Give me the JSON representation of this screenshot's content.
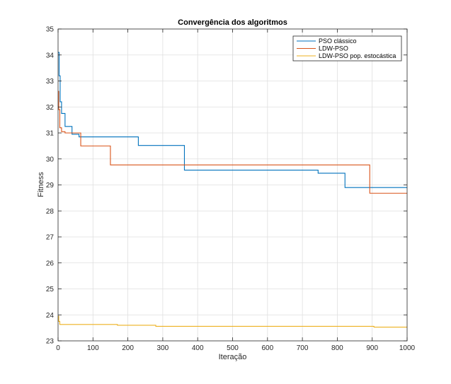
{
  "chart_data": {
    "type": "line",
    "title": "Convergência dos algoritmos",
    "xlabel": "Iteração",
    "ylabel": "Fitness",
    "xlim": [
      0,
      1000
    ],
    "ylim": [
      23,
      35
    ],
    "xticks": [
      0,
      100,
      200,
      300,
      400,
      500,
      600,
      700,
      800,
      900,
      1000
    ],
    "yticks": [
      23,
      24,
      25,
      26,
      27,
      28,
      29,
      30,
      31,
      32,
      33,
      34,
      35
    ],
    "grid": true,
    "legend_position": "top-right",
    "series": [
      {
        "name": "PSO clássico",
        "color": "#0072BD",
        "step": true,
        "x": [
          0,
          3,
          6,
          10,
          20,
          40,
          45,
          60,
          230,
          362,
          745,
          822,
          1000
        ],
        "y": [
          34.1,
          33.2,
          32.2,
          31.75,
          31.25,
          30.95,
          30.95,
          30.85,
          30.52,
          29.57,
          29.45,
          28.9,
          28.9
        ]
      },
      {
        "name": "LDW-PSO",
        "color": "#D95319",
        "step": true,
        "x": [
          0,
          2,
          5,
          10,
          20,
          65,
          150,
          893,
          1000
        ],
        "y": [
          32.6,
          31.9,
          31.2,
          31.05,
          31.0,
          30.5,
          29.77,
          28.68,
          28.68
        ]
      },
      {
        "name": "LDW-PSO pop. estocástica",
        "color": "#EDB120",
        "step": true,
        "x": [
          0,
          2,
          5,
          170,
          280,
          905,
          1000
        ],
        "y": [
          23.95,
          23.75,
          23.63,
          23.6,
          23.56,
          23.53,
          23.53
        ]
      }
    ]
  }
}
